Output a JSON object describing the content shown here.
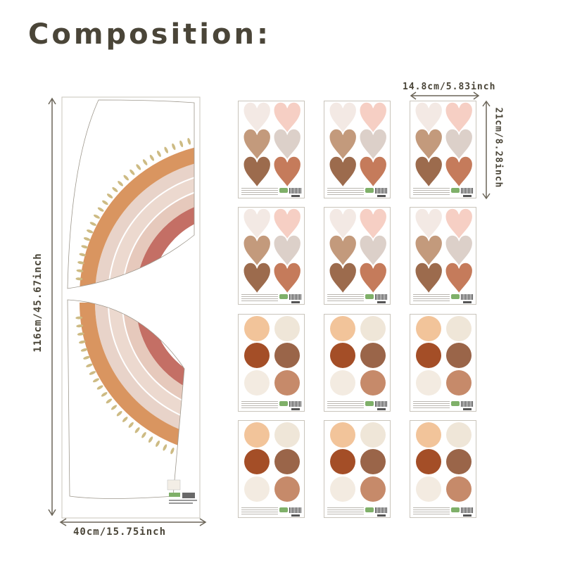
{
  "title": "Composition:",
  "dimensions": {
    "large_width": "40cm/15.75inch",
    "large_height": "116cm/45.67inch",
    "sheet_width": "14.8cm/5.83inch",
    "sheet_height": "21cm/8.28inch"
  },
  "colors": {
    "text": "#4a4538",
    "rainbow_arcs": [
      "#d99560",
      "#e8d3c9",
      "#ecd9cf",
      "#e6c9bc",
      "#c46f65"
    ],
    "dots": "#cdbb84",
    "heart_colors": [
      "#f3e9e4",
      "#f6cfc4",
      "#c39a7c",
      "#dcd0c9",
      "#9c6b4d",
      "#c57b5b"
    ],
    "circle_colors": [
      "#f2c49a",
      "#efe6d8",
      "#a44e27",
      "#9a6549",
      "#f3ebe1",
      "#c68a6a"
    ]
  },
  "sheets": {
    "heart_rows": 2,
    "circle_rows": 2,
    "per_row": 3
  }
}
